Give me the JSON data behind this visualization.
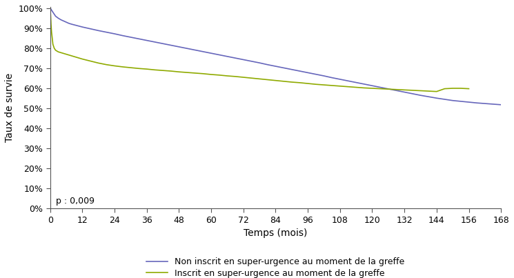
{
  "blue_x": [
    0,
    0.3,
    0.5,
    1,
    1.5,
    2,
    3,
    4,
    5,
    6,
    7,
    8,
    10,
    12,
    15,
    18,
    21,
    24,
    27,
    30,
    33,
    36,
    39,
    42,
    45,
    48,
    51,
    54,
    57,
    60,
    63,
    66,
    69,
    72,
    75,
    78,
    81,
    84,
    87,
    90,
    93,
    96,
    99,
    102,
    105,
    108,
    111,
    114,
    117,
    120,
    123,
    126,
    129,
    132,
    135,
    138,
    141,
    144,
    147,
    150,
    153,
    156,
    159,
    162,
    165,
    168
  ],
  "blue_y": [
    1.0,
    0.995,
    0.99,
    0.98,
    0.97,
    0.96,
    0.95,
    0.942,
    0.936,
    0.93,
    0.924,
    0.92,
    0.913,
    0.906,
    0.897,
    0.888,
    0.88,
    0.872,
    0.863,
    0.855,
    0.847,
    0.839,
    0.831,
    0.823,
    0.815,
    0.807,
    0.799,
    0.791,
    0.783,
    0.775,
    0.767,
    0.759,
    0.751,
    0.743,
    0.735,
    0.727,
    0.718,
    0.71,
    0.702,
    0.694,
    0.686,
    0.678,
    0.67,
    0.662,
    0.653,
    0.645,
    0.637,
    0.629,
    0.621,
    0.613,
    0.605,
    0.597,
    0.589,
    0.581,
    0.573,
    0.565,
    0.558,
    0.551,
    0.545,
    0.539,
    0.535,
    0.531,
    0.527,
    0.524,
    0.521,
    0.518
  ],
  "olive_x": [
    0,
    0.1,
    0.2,
    0.3,
    0.5,
    0.8,
    1,
    1.5,
    2,
    3,
    4,
    5,
    6,
    7,
    8,
    10,
    12,
    15,
    18,
    21,
    24,
    27,
    30,
    33,
    36,
    39,
    42,
    45,
    48,
    51,
    54,
    57,
    60,
    63,
    66,
    69,
    72,
    75,
    78,
    81,
    84,
    87,
    90,
    93,
    96,
    99,
    102,
    105,
    108,
    111,
    114,
    117,
    120,
    123,
    126,
    129,
    132,
    135,
    138,
    141,
    144,
    147,
    150,
    153,
    156
  ],
  "olive_y": [
    1.0,
    0.975,
    0.95,
    0.92,
    0.88,
    0.845,
    0.82,
    0.8,
    0.79,
    0.782,
    0.778,
    0.774,
    0.77,
    0.766,
    0.762,
    0.754,
    0.746,
    0.736,
    0.726,
    0.718,
    0.712,
    0.707,
    0.703,
    0.699,
    0.696,
    0.692,
    0.689,
    0.686,
    0.682,
    0.679,
    0.676,
    0.673,
    0.669,
    0.666,
    0.662,
    0.659,
    0.655,
    0.651,
    0.647,
    0.643,
    0.639,
    0.635,
    0.631,
    0.628,
    0.624,
    0.62,
    0.617,
    0.614,
    0.611,
    0.608,
    0.605,
    0.602,
    0.6,
    0.598,
    0.596,
    0.594,
    0.592,
    0.59,
    0.588,
    0.586,
    0.584,
    0.598,
    0.6,
    0.6,
    0.598
  ],
  "blue_color": "#6666bb",
  "olive_color": "#8faa00",
  "xlabel": "Temps (mois)",
  "ylabel": "Taux de survie",
  "xlim": [
    0,
    168
  ],
  "ylim": [
    0,
    1.005
  ],
  "xticks": [
    0,
    12,
    24,
    36,
    48,
    60,
    72,
    84,
    96,
    108,
    120,
    132,
    144,
    156,
    168
  ],
  "yticks": [
    0.0,
    0.1,
    0.2,
    0.3,
    0.4,
    0.5,
    0.6,
    0.7,
    0.8,
    0.9,
    1.0
  ],
  "ytick_labels": [
    "0%",
    "10%",
    "20%",
    "30%",
    "40%",
    "50%",
    "60%",
    "70%",
    "80%",
    "90%",
    "100%"
  ],
  "pvalue_text": "p : 0,009",
  "legend_blue": "Non inscrit en super-urgence au moment de la greffe",
  "legend_olive": "Inscrit en super-urgence au moment de la greffe",
  "line_width": 1.2
}
